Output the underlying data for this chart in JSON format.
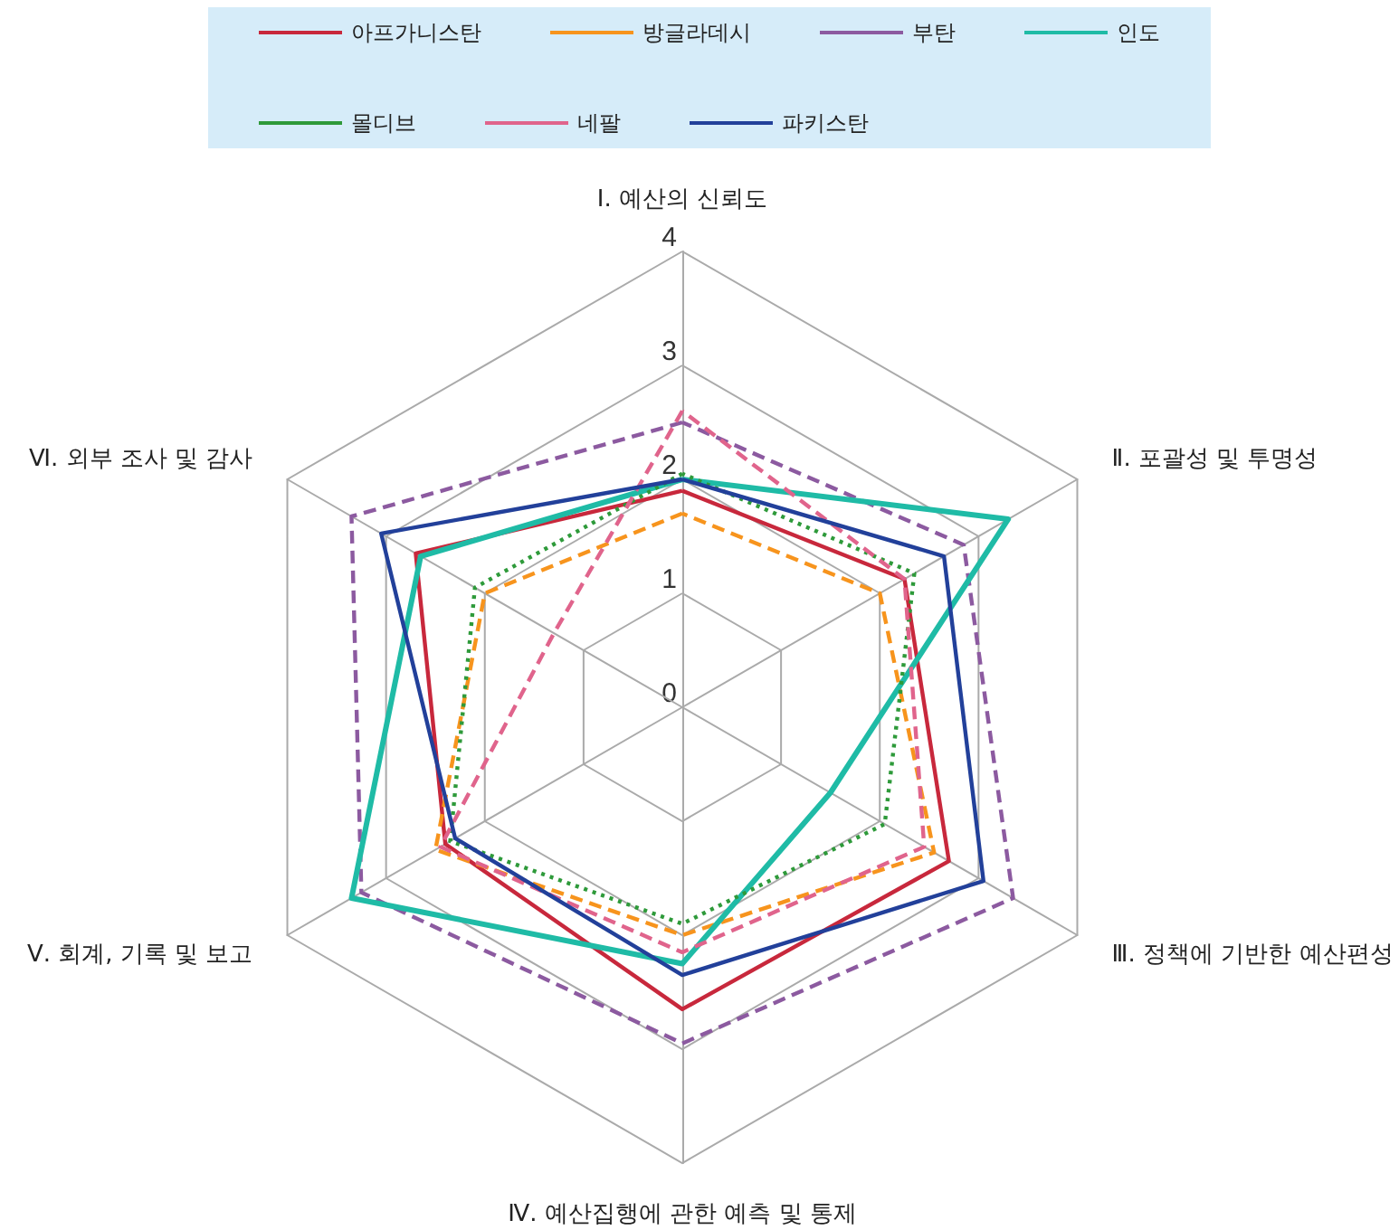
{
  "chart_data": {
    "type": "radar",
    "categories": [
      "Ⅰ. 예산의 신뢰도",
      "Ⅱ. 포괄성 및 투명성",
      "Ⅲ. 정책에 기반한 예산편성",
      "Ⅳ. 예산집행에 관한 예측 및 통제",
      "Ⅴ. 회계, 기록 및 보고",
      "Ⅵ. 외부 조사 및 감사"
    ],
    "ylim": [
      0,
      4
    ],
    "yticks": [
      0,
      1,
      2,
      3,
      4
    ],
    "grid": true,
    "legend": "top",
    "marker": "none",
    "series": [
      {
        "name": "아프가니스탄",
        "color": "#c8283c",
        "line_style": "solid",
        "values": [
          1.9,
          2.25,
          2.7,
          2.65,
          2.4,
          2.7
        ]
      },
      {
        "name": "방글라데시",
        "color": "#f7941d",
        "line_style": "dashed",
        "values": [
          1.7,
          2.0,
          2.55,
          2.0,
          2.5,
          2.0
        ]
      },
      {
        "name": "부탄",
        "color": "#8c5aa0",
        "line_style": "dashed",
        "values": [
          2.5,
          2.85,
          3.35,
          2.95,
          3.25,
          3.35
        ]
      },
      {
        "name": "인도",
        "color": "#1fbba6",
        "line_style": "solid",
        "values": [
          2.0,
          3.3,
          1.5,
          2.25,
          3.35,
          2.65
        ]
      },
      {
        "name": "몰디브",
        "color": "#2e9a3a",
        "line_style": "dotted",
        "values": [
          2.05,
          2.35,
          2.05,
          1.9,
          2.35,
          2.1
        ]
      },
      {
        "name": "네팔",
        "color": "#e0648c",
        "line_style": "dashed",
        "values": [
          2.6,
          2.25,
          2.45,
          2.15,
          2.45,
          1.3
        ]
      },
      {
        "name": "파키스탄",
        "color": "#22409a",
        "line_style": "solid",
        "values": [
          2.0,
          2.65,
          3.05,
          2.35,
          2.3,
          3.05
        ]
      }
    ]
  }
}
